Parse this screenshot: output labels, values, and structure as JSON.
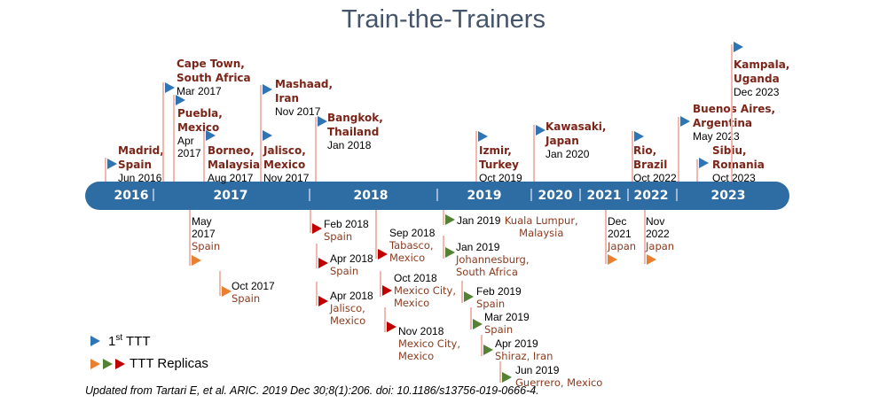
{
  "title": "Train-the-Trainers",
  "colors": {
    "bar": "#2e6da4",
    "first_ttt": "#2e75b6",
    "replica_orange": "#e8802f",
    "replica_green": "#548235",
    "replica_red": "#c00000",
    "city": "#7b2418"
  },
  "years": [
    "2016",
    "2017",
    "2018",
    "2019",
    "2020",
    "2021",
    "2022",
    "2023"
  ],
  "first_ttt": [
    {
      "city": "Madrid,\nSpain",
      "date": "Jun 2016"
    },
    {
      "city": "Cape Town,\nSouth Africa",
      "date": "Mar 2017"
    },
    {
      "city": "Puebla,\nMexico",
      "date": "Apr\n2017"
    },
    {
      "city": "Borneo,\nMalaysia",
      "date": "Aug 2017"
    },
    {
      "city": "Mashaad,\nIran",
      "date": "Nov 2017"
    },
    {
      "city": "Jalisco,\nMexico",
      "date": "Nov 2017"
    },
    {
      "city": "Bangkok,\nThailand",
      "date": "Jan 2018"
    },
    {
      "city": "Izmir,\nTurkey",
      "date": "Oct 2019"
    },
    {
      "city": "Kawasaki,\nJapan",
      "date": "Jan 2020"
    },
    {
      "city": "Rio,\nBrazil",
      "date": "Oct 2022"
    },
    {
      "city": "Buenos Aires,\nArgentina",
      "date": "May 2023"
    },
    {
      "city": "Sibiu,\nRomania",
      "date": "Oct 2023"
    },
    {
      "city": "Kampala,\nUganda",
      "date": "Dec 2023"
    }
  ],
  "replicas": [
    {
      "date": "May\n2017",
      "city": "Spain",
      "color": "orange"
    },
    {
      "date": "Oct 2017",
      "city": "Spain",
      "color": "orange"
    },
    {
      "date": "Feb 2018",
      "city": "Spain",
      "color": "red"
    },
    {
      "date": "Apr 2018",
      "city": "Spain",
      "color": "red"
    },
    {
      "date": "Apr 2018",
      "city": "Jalisco,\nMexico",
      "color": "red"
    },
    {
      "date": "Sep 2018",
      "city": "Tabasco,\nMexico",
      "color": "red"
    },
    {
      "date": "Oct 2018",
      "city": "Mexico City,\nMexico",
      "color": "red"
    },
    {
      "date": "Nov 2018",
      "city": "Mexico City,\nMexico",
      "color": "red"
    },
    {
      "date": "Jan 2019",
      "city": "Kuala Lumpur,\nMalaysia",
      "color": "green"
    },
    {
      "date": "Jan 2019",
      "city": "Johannesburg,\nSouth  Africa",
      "color": "green"
    },
    {
      "date": "Feb 2019",
      "city": "Spain",
      "color": "green"
    },
    {
      "date": "Mar 2019",
      "city": "Spain",
      "color": "green"
    },
    {
      "date": "Apr 2019",
      "city": "Shiraz, Iran",
      "color": "green"
    },
    {
      "date": "Jun 2019",
      "city": "Guerrero, Mexico",
      "color": "green"
    },
    {
      "date": "Dec\n2021",
      "city": "Japan",
      "color": "orange"
    },
    {
      "date": "Nov\n2022",
      "city": "Japan",
      "color": "orange"
    }
  ],
  "legend": {
    "first": "1",
    "first_sup": "st",
    "first_rest": " TTT",
    "replicas": "TTT Replicas"
  },
  "footer": "Updated from Tartari E, et al. ARIC. 2019 Dec 30;8(1):206. doi: 10.1186/s13756-019-0666-4."
}
